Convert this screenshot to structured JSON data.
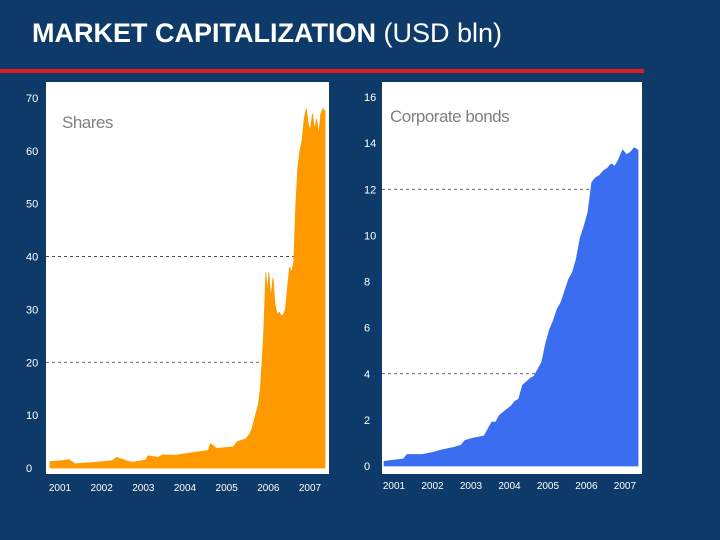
{
  "title": {
    "bold": "MARKET CAPITALIZATION",
    "normal": "(USD bln)"
  },
  "colors": {
    "background": "#0e3a6a",
    "plot_background": "#ffffff",
    "rule": "#e01b24",
    "shares": "#ff9900",
    "bonds": "#3a6df0",
    "gridline": "#333333",
    "tick_label": "#ffffff",
    "chart_label": "#808080"
  },
  "chart_data": [
    {
      "type": "area",
      "label": "Shares",
      "x_ticks": [
        "2001",
        "2002",
        "2003",
        "2004",
        "2005",
        "2006",
        "2007"
      ],
      "xlim": [
        2001.0,
        2007.6
      ],
      "ylim": [
        0,
        70
      ],
      "y_ticks": [
        0,
        10,
        20,
        30,
        40,
        50,
        60,
        70
      ],
      "gridlines_y": [
        20,
        40
      ],
      "grid": "dashed",
      "x": [
        2001.0,
        2001.3,
        2001.45,
        2001.6,
        2002.0,
        2002.5,
        2002.6,
        2002.9,
        2003.0,
        2003.3,
        2003.35,
        2003.6,
        2003.7,
        2004.0,
        2004.5,
        2004.8,
        2004.85,
        2005.0,
        2005.4,
        2005.5,
        2005.7,
        2005.8,
        2005.85,
        2005.9,
        2005.95,
        2006.0,
        2006.05,
        2006.08,
        2006.12,
        2006.15,
        2006.18,
        2006.22,
        2006.25,
        2006.3,
        2006.35,
        2006.4,
        2006.45,
        2006.5,
        2006.55,
        2006.6,
        2006.65,
        2006.7,
        2006.75,
        2006.8,
        2006.85,
        2006.9,
        2006.95,
        2007.0,
        2007.05,
        2007.1,
        2007.15,
        2007.2,
        2007.25,
        2007.3,
        2007.35,
        2007.4,
        2007.45,
        2007.5,
        2007.55,
        2007.6
      ],
      "y": [
        1.2,
        1.4,
        1.6,
        0.8,
        1.0,
        1.4,
        2.0,
        1.2,
        1.1,
        1.5,
        2.3,
        2.0,
        2.5,
        2.4,
        3.0,
        3.3,
        4.6,
        3.7,
        4.0,
        5.0,
        5.5,
        6.5,
        7.5,
        9.0,
        10.5,
        12.0,
        15.0,
        19.0,
        24.0,
        30.0,
        37.0,
        33.0,
        37.0,
        32.0,
        36.0,
        31.0,
        29.0,
        29.5,
        28.8,
        29.0,
        30.0,
        34.0,
        38.0,
        37.0,
        39.0,
        50.0,
        57.0,
        60.0,
        62.0,
        66.0,
        68.0,
        65.0,
        64.0,
        67.0,
        64.0,
        66.0,
        63.0,
        67.0,
        68.0,
        67.5
      ]
    },
    {
      "type": "area",
      "label": "Corporate bonds",
      "x_ticks": [
        "2001",
        "2002",
        "2003",
        "2004",
        "2005",
        "2006",
        "2007"
      ],
      "xlim": [
        2001.0,
        2007.6
      ],
      "ylim": [
        0,
        16
      ],
      "y_ticks": [
        0,
        2,
        4,
        6,
        8,
        10,
        12,
        14,
        16
      ],
      "gridlines_y": [
        4,
        12
      ],
      "grid": "dashed",
      "x": [
        2001.0,
        2001.5,
        2001.6,
        2002.0,
        2002.3,
        2002.5,
        2002.8,
        2003.0,
        2003.1,
        2003.3,
        2003.6,
        2003.8,
        2003.9,
        2004.0,
        2004.3,
        2004.4,
        2004.5,
        2004.6,
        2004.8,
        2004.9,
        2005.0,
        2005.1,
        2005.2,
        2005.3,
        2005.4,
        2005.5,
        2005.6,
        2005.7,
        2005.8,
        2005.9,
        2006.0,
        2006.1,
        2006.2,
        2006.3,
        2006.4,
        2006.5,
        2006.6,
        2006.7,
        2006.8,
        2006.9,
        2007.0,
        2007.1,
        2007.2,
        2007.3,
        2007.4,
        2007.5,
        2007.6
      ],
      "y": [
        0.2,
        0.3,
        0.5,
        0.5,
        0.6,
        0.7,
        0.8,
        0.9,
        1.1,
        1.2,
        1.3,
        1.9,
        1.9,
        2.2,
        2.6,
        2.8,
        2.9,
        3.5,
        3.8,
        3.9,
        4.2,
        4.5,
        5.3,
        5.9,
        6.3,
        6.8,
        7.1,
        7.6,
        8.1,
        8.4,
        9.0,
        9.9,
        10.4,
        11.0,
        12.3,
        12.5,
        12.6,
        12.8,
        12.9,
        13.1,
        13.0,
        13.3,
        13.7,
        13.5,
        13.6,
        13.8,
        13.7
      ]
    }
  ]
}
